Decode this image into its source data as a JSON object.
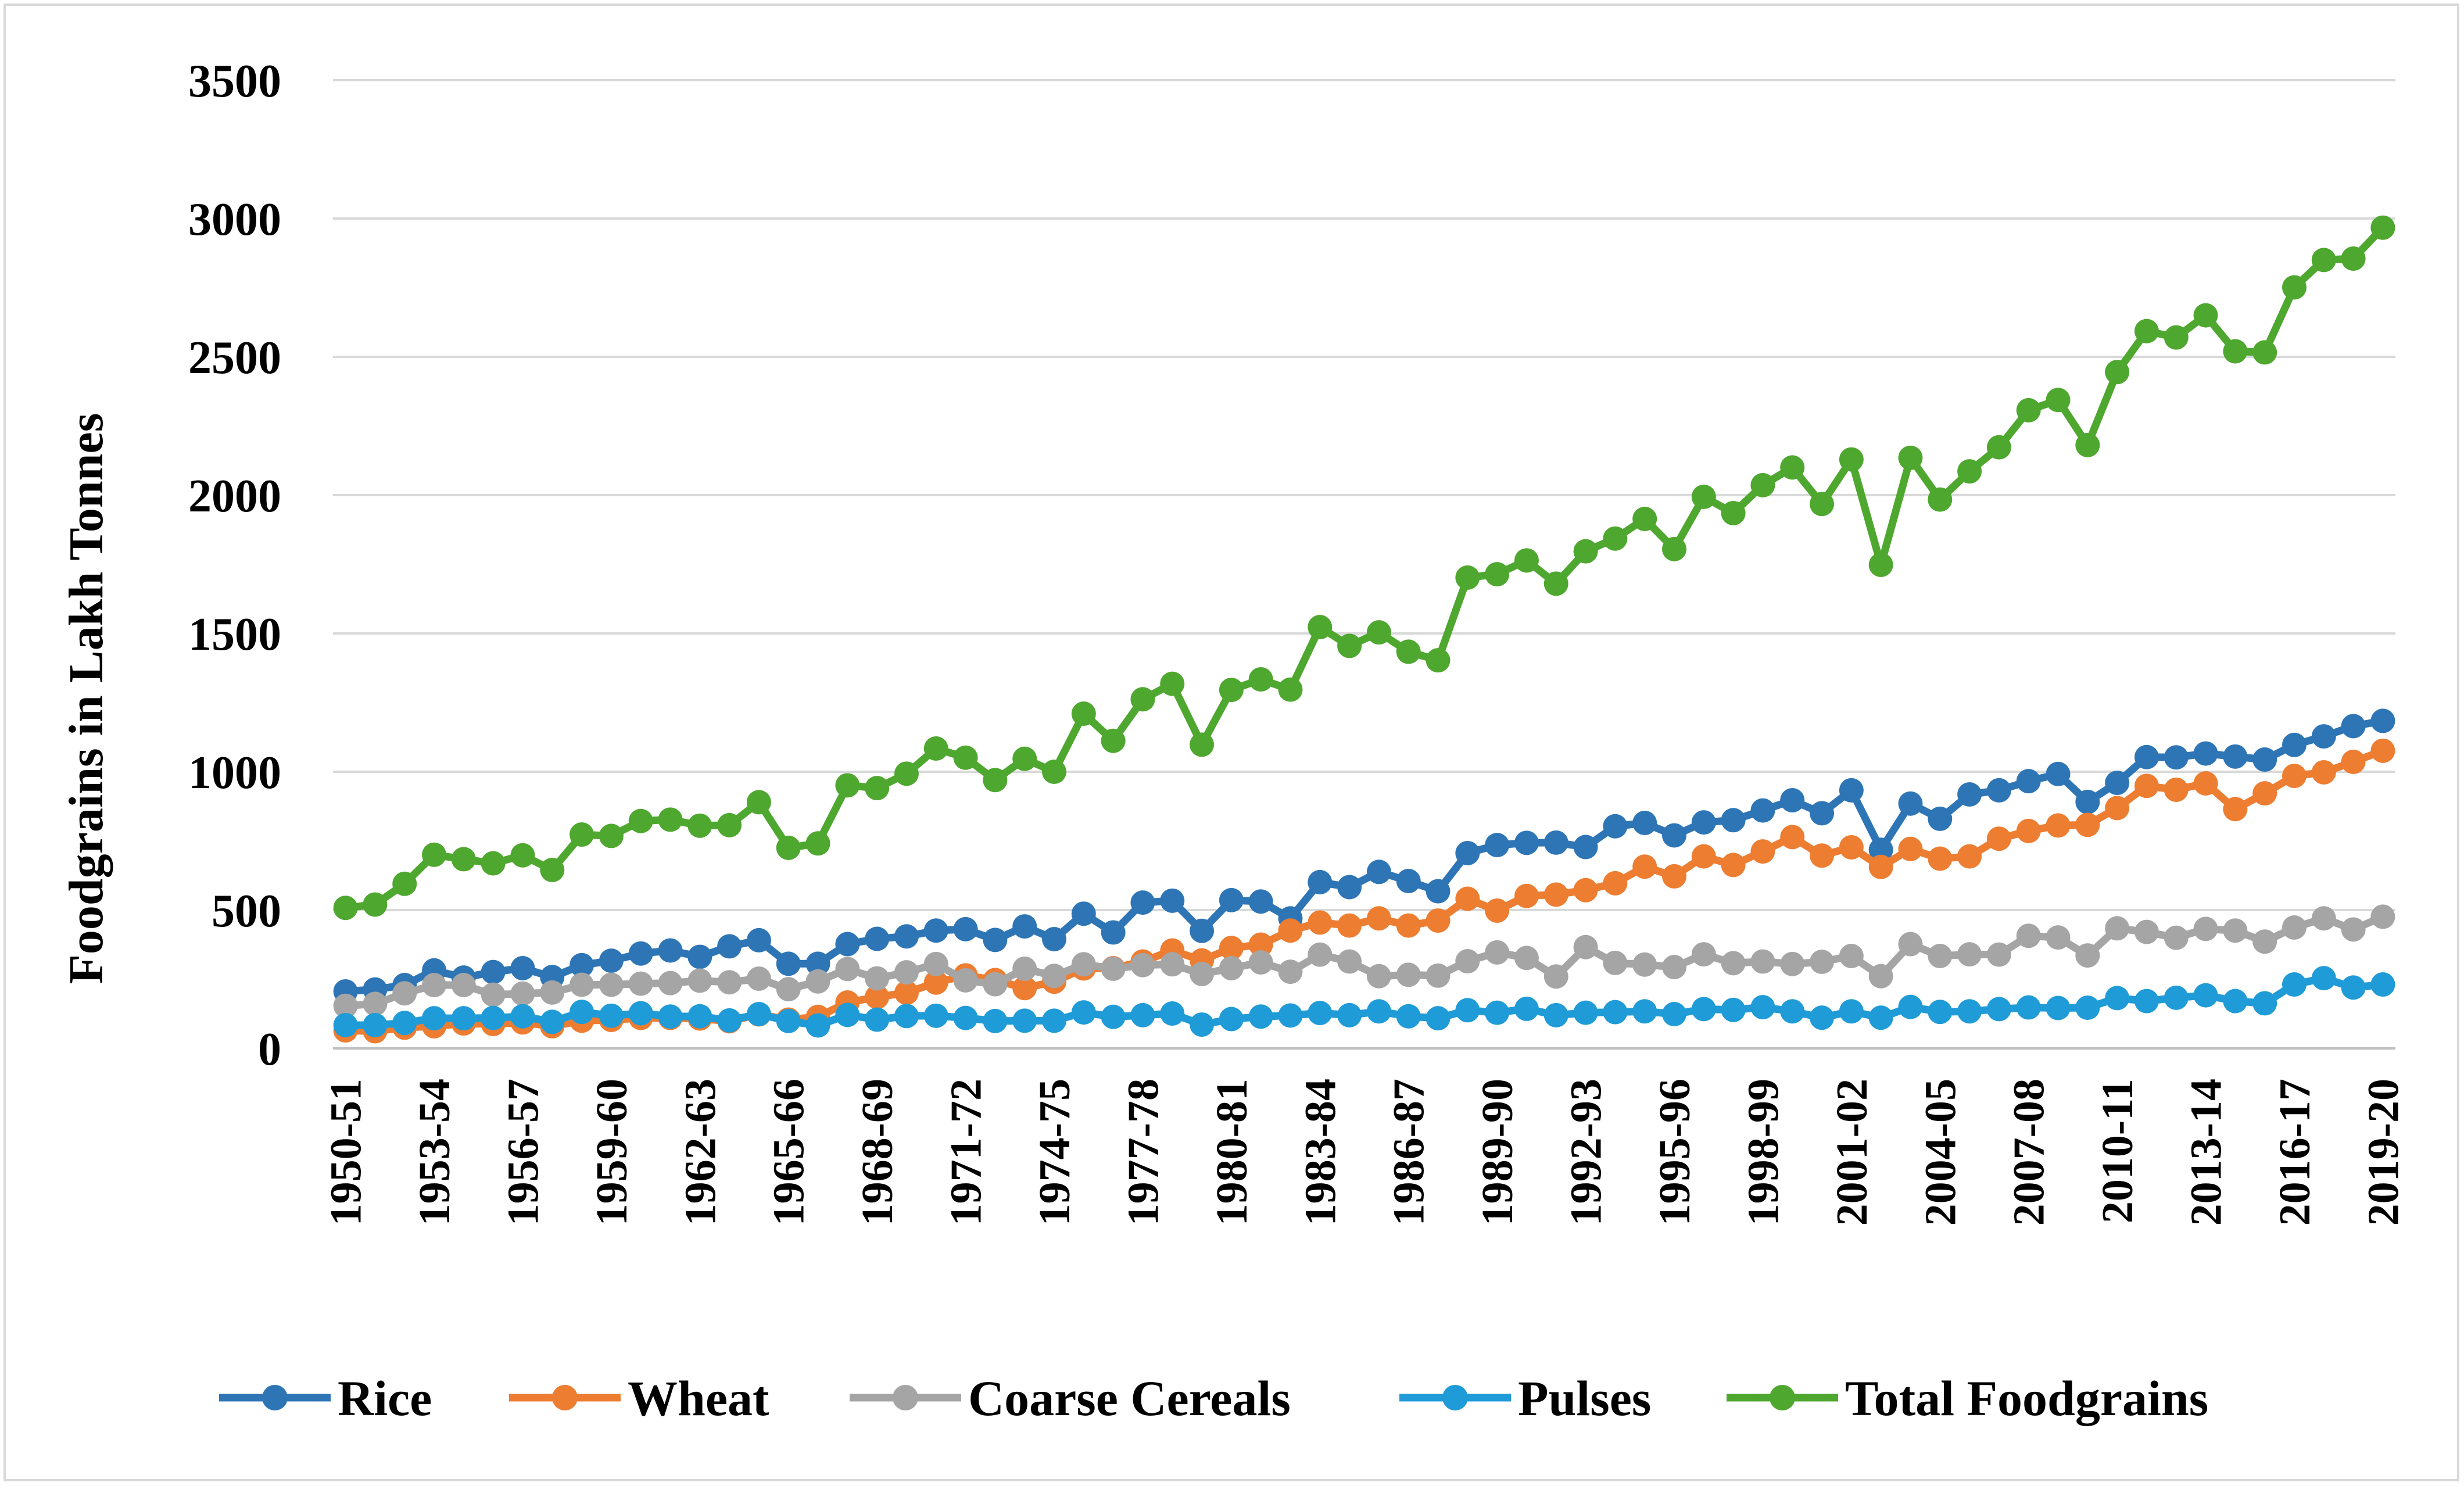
{
  "chart_data": {
    "type": "line",
    "title": "",
    "xlabel": "",
    "ylabel": "Foodgrains  in Lakh Tonnes",
    "ylim": [
      0,
      3500
    ],
    "yticks": [
      "0",
      "500",
      "1000",
      "1500",
      "2000",
      "2500",
      "3000",
      "3500"
    ],
    "grid": true,
    "legend_position": "bottom",
    "x_tick_labels": [
      "1950-51",
      "1953-54",
      "1956-57",
      "1959-60",
      "1962-63",
      "1965-66",
      "1968-69",
      "1971-72",
      "1974-75",
      "1977-78",
      "1980-81",
      "1983-84",
      "1986-87",
      "1989-90",
      "1992-93",
      "1995-96",
      "1998-99",
      "2001-02",
      "2004-05",
      "2007-08",
      "2010-11",
      "2013-14",
      "2016-17",
      "2019-20"
    ],
    "x_start_year": 1950,
    "num_points": 70,
    "series": [
      {
        "name": "Rice",
        "color": "#2e75b6",
        "values": [
          206,
          213,
          229,
          282,
          256,
          276,
          290,
          258,
          301,
          317,
          343,
          354,
          331,
          369,
          391,
          306,
          306,
          377,
          396,
          405,
          426,
          431,
          392,
          441,
          395,
          487,
          419,
          527,
          534,
          425,
          536,
          531,
          470,
          601,
          583,
          638,
          605,
          568,
          706,
          735,
          743,
          744,
          728,
          803,
          815,
          770,
          817,
          825,
          860,
          897,
          850,
          933,
          718,
          885,
          830,
          918,
          933,
          966,
          992,
          891,
          960,
          1053,
          1052,
          1066,
          1055,
          1044,
          1097,
          1128,
          1165,
          1184
        ]
      },
      {
        "name": "Wheat",
        "color": "#ed7d31",
        "values": [
          65,
          62,
          75,
          80,
          90,
          88,
          94,
          80,
          100,
          103,
          110,
          110,
          108,
          98,
          123,
          104,
          114,
          166,
          186,
          201,
          238,
          264,
          247,
          218,
          241,
          289,
          290,
          314,
          354,
          318,
          363,
          375,
          426,
          455,
          444,
          470,
          444,
          462,
          541,
          498,
          551,
          556,
          572,
          597,
          657,
          622,
          694,
          663,
          712,
          764,
          697,
          727,
          656,
          721,
          686,
          694,
          758,
          786,
          806,
          808,
          869,
          949,
          935,
          958,
          865,
          922,
          985,
          998,
          1036,
          1076
        ]
      },
      {
        "name": "Coarse Cereals",
        "color": "#a5a5a5",
        "values": [
          154,
          161,
          199,
          229,
          229,
          194,
          198,
          202,
          230,
          230,
          234,
          236,
          245,
          239,
          252,
          214,
          242,
          287,
          253,
          275,
          305,
          246,
          232,
          288,
          262,
          304,
          288,
          301,
          304,
          269,
          290,
          311,
          277,
          339,
          314,
          261,
          266,
          263,
          315,
          347,
          327,
          260,
          366,
          309,
          303,
          294,
          340,
          308,
          314,
          305,
          313,
          334,
          261,
          377,
          334,
          340,
          339,
          407,
          401,
          336,
          434,
          421,
          400,
          432,
          426,
          386,
          437,
          470,
          430,
          476
        ]
      },
      {
        "name": "Pulses",
        "color": "#1f9bd7",
        "values": [
          84,
          84,
          92,
          109,
          109,
          110,
          116,
          96,
          132,
          118,
          127,
          115,
          116,
          101,
          124,
          99,
          83,
          121,
          104,
          117,
          118,
          110,
          99,
          100,
          100,
          130,
          114,
          120,
          126,
          86,
          106,
          115,
          119,
          128,
          120,
          134,
          116,
          109,
          138,
          129,
          143,
          120,
          129,
          131,
          134,
          124,
          142,
          139,
          149,
          134,
          111,
          134,
          111,
          150,
          132,
          134,
          142,
          148,
          146,
          147,
          182,
          171,
          183,
          192,
          171,
          163,
          231,
          254,
          220,
          231
        ]
      },
      {
        "name": "Total Foodgrains",
        "color": "#4ea72e",
        "values": [
          508,
          520,
          595,
          700,
          684,
          669,
          698,
          645,
          773,
          768,
          822,
          827,
          805,
          807,
          890,
          725,
          741,
          951,
          941,
          993,
          1084,
          1051,
          970,
          1047,
          1000,
          1210,
          1112,
          1262,
          1318,
          1098,
          1296,
          1334,
          1297,
          1523,
          1455,
          1504,
          1434,
          1403,
          1702,
          1714,
          1764,
          1680,
          1797,
          1843,
          1914,
          1805,
          1994,
          1935,
          2036,
          2100,
          1968,
          2129,
          1748,
          2135,
          1984,
          2086,
          2173,
          2307,
          2344,
          2181,
          2445,
          2593,
          2570,
          2650,
          2520,
          2516,
          2751,
          2850,
          2855,
          2967
        ]
      }
    ]
  }
}
